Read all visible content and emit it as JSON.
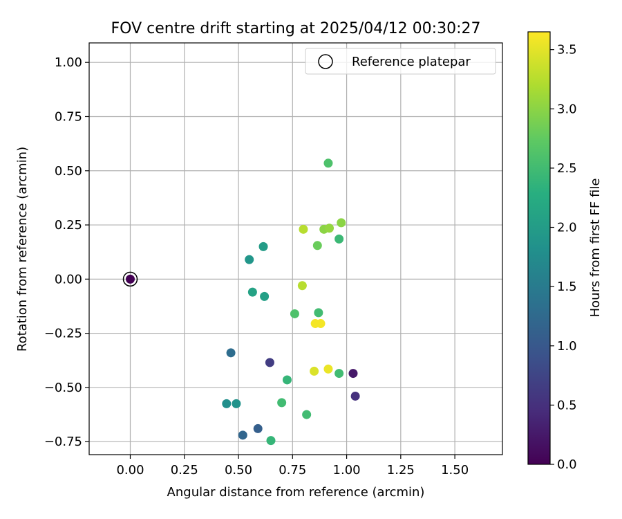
{
  "chart_data": {
    "type": "scatter",
    "title": "FOV centre drift starting at 2025/04/12 00:30:27",
    "xlabel": "Angular distance from reference (arcmin)",
    "ylabel": "Rotation from reference (arcmin)",
    "xlim": [
      -0.19,
      1.72
    ],
    "ylim": [
      -0.81,
      1.09
    ],
    "x_ticks": [
      0.0,
      0.25,
      0.5,
      0.75,
      1.0,
      1.25,
      1.5
    ],
    "x_tick_labels": [
      "0.00",
      "0.25",
      "0.50",
      "0.75",
      "1.00",
      "1.25",
      "1.50"
    ],
    "y_ticks": [
      -0.75,
      -0.5,
      -0.25,
      0.0,
      0.25,
      0.5,
      0.75,
      1.0
    ],
    "y_tick_labels": [
      "−0.75",
      "−0.50",
      "−0.25",
      "0.00",
      "0.25",
      "0.50",
      "0.75",
      "1.00"
    ],
    "grid": true,
    "legend": {
      "placement": "top-right",
      "entries": [
        {
          "label": "Reference platepar",
          "marker": "open-circle"
        }
      ]
    },
    "colorbar": {
      "label": "Hours from first FF file",
      "colormap": "viridis",
      "range": [
        0.0,
        3.65
      ],
      "ticks": [
        0.0,
        0.5,
        1.0,
        1.5,
        2.0,
        2.5,
        3.0,
        3.5
      ],
      "tick_labels": [
        "0.0",
        "0.5",
        "1.0",
        "1.5",
        "2.0",
        "2.5",
        "3.0",
        "3.5"
      ]
    },
    "reference_point": {
      "x": 0.0,
      "y": 0.0
    },
    "points": [
      {
        "x": 0.0,
        "y": 0.0,
        "hours": 0.0
      },
      {
        "x": 1.03,
        "y": -0.435,
        "hours": 0.25
      },
      {
        "x": 1.04,
        "y": -0.54,
        "hours": 0.5
      },
      {
        "x": 0.645,
        "y": -0.385,
        "hours": 0.65
      },
      {
        "x": 0.59,
        "y": -0.69,
        "hours": 1.1
      },
      {
        "x": 0.52,
        "y": -0.72,
        "hours": 1.2
      },
      {
        "x": 0.465,
        "y": -0.34,
        "hours": 1.3
      },
      {
        "x": 0.445,
        "y": -0.575,
        "hours": 1.8
      },
      {
        "x": 0.49,
        "y": -0.575,
        "hours": 1.85
      },
      {
        "x": 0.55,
        "y": 0.09,
        "hours": 1.9
      },
      {
        "x": 0.615,
        "y": 0.15,
        "hours": 2.0
      },
      {
        "x": 0.62,
        "y": -0.08,
        "hours": 2.05
      },
      {
        "x": 0.565,
        "y": -0.06,
        "hours": 2.1
      },
      {
        "x": 0.65,
        "y": -0.745,
        "hours": 2.4
      },
      {
        "x": 0.725,
        "y": -0.465,
        "hours": 2.4
      },
      {
        "x": 0.7,
        "y": -0.57,
        "hours": 2.5
      },
      {
        "x": 0.815,
        "y": -0.625,
        "hours": 2.5
      },
      {
        "x": 0.965,
        "y": 0.185,
        "hours": 2.45
      },
      {
        "x": 0.965,
        "y": -0.435,
        "hours": 2.5
      },
      {
        "x": 0.87,
        "y": -0.155,
        "hours": 2.5
      },
      {
        "x": 0.76,
        "y": -0.16,
        "hours": 2.6
      },
      {
        "x": 0.915,
        "y": 0.535,
        "hours": 2.6
      },
      {
        "x": 0.865,
        "y": 0.155,
        "hours": 2.8
      },
      {
        "x": 0.975,
        "y": 0.26,
        "hours": 3.0
      },
      {
        "x": 0.895,
        "y": 0.23,
        "hours": 3.0
      },
      {
        "x": 0.92,
        "y": 0.235,
        "hours": 3.05
      },
      {
        "x": 0.8,
        "y": 0.23,
        "hours": 3.25
      },
      {
        "x": 0.795,
        "y": -0.03,
        "hours": 3.25
      },
      {
        "x": 0.85,
        "y": -0.425,
        "hours": 3.45
      },
      {
        "x": 0.915,
        "y": -0.415,
        "hours": 3.55
      },
      {
        "x": 0.855,
        "y": -0.205,
        "hours": 3.6
      },
      {
        "x": 0.88,
        "y": -0.205,
        "hours": 3.6
      }
    ]
  }
}
